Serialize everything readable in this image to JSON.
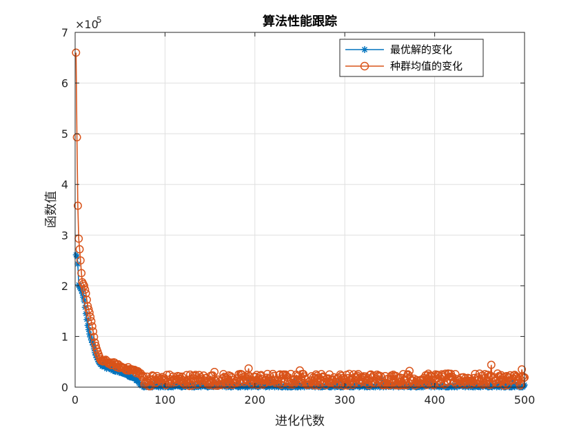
{
  "chart_data": {
    "type": "line",
    "title": "算法性能跟踪",
    "xlabel": "进化代数",
    "ylabel": "函数值",
    "xlim": [
      0,
      500
    ],
    "ylim": [
      0,
      7
    ],
    "x_ticks": [
      0,
      100,
      200,
      300,
      400,
      500
    ],
    "y_ticks": [
      0,
      1,
      2,
      3,
      4,
      5,
      6,
      7
    ],
    "x_tick_labels": [
      "0",
      "100",
      "200",
      "300",
      "400",
      "500"
    ],
    "y_tick_labels": [
      "0",
      "1",
      "2",
      "3",
      "4",
      "5",
      "6",
      "7"
    ],
    "y_exponent_label": "×10",
    "y_exponent_power": "5",
    "grid": true,
    "legend_position": "top-right",
    "legend_entries": [
      "最优解的变化",
      "种群均值的变化"
    ],
    "series": [
      {
        "name": "最优解的变化",
        "color": "#0072BD",
        "marker": "asterisk",
        "key_points": [
          [
            1,
            2.61
          ],
          [
            2,
            2.57
          ],
          [
            3,
            2.43
          ],
          [
            4,
            2.02
          ],
          [
            5,
            1.97
          ],
          [
            6,
            1.95
          ],
          [
            8,
            1.85
          ],
          [
            10,
            1.7
          ],
          [
            12,
            1.45
          ],
          [
            14,
            1.22
          ],
          [
            16,
            1.05
          ],
          [
            18,
            0.93
          ],
          [
            20,
            0.83
          ],
          [
            22,
            0.68
          ],
          [
            24,
            0.58
          ],
          [
            26,
            0.5
          ],
          [
            28,
            0.45
          ],
          [
            30,
            0.42
          ],
          [
            35,
            0.38
          ],
          [
            40,
            0.35
          ],
          [
            45,
            0.32
          ],
          [
            50,
            0.3
          ],
          [
            55,
            0.26
          ],
          [
            60,
            0.22
          ],
          [
            65,
            0.18
          ],
          [
            68,
            0.14
          ],
          [
            70,
            0.12
          ],
          [
            72,
            0.05
          ],
          [
            75,
            0.03
          ],
          [
            80,
            0.02
          ],
          [
            100,
            0.02
          ],
          [
            200,
            0.02
          ],
          [
            300,
            0.02
          ],
          [
            400,
            0.02
          ],
          [
            500,
            0.02
          ]
        ],
        "base_values": [
          0.02,
          0.02,
          0.015,
          0.01
        ],
        "noise": 0.06
      },
      {
        "name": "种群均值的变化",
        "color": "#D95319",
        "marker": "circle",
        "key_points": [
          [
            1,
            6.6
          ],
          [
            2,
            4.93
          ],
          [
            3,
            3.58
          ],
          [
            4,
            2.93
          ],
          [
            5,
            2.72
          ],
          [
            6,
            2.5
          ],
          [
            7,
            2.25
          ],
          [
            8,
            2.07
          ],
          [
            10,
            2.0
          ],
          [
            12,
            1.85
          ],
          [
            14,
            1.6
          ],
          [
            16,
            1.47
          ],
          [
            18,
            1.3
          ],
          [
            20,
            1.1
          ],
          [
            22,
            0.88
          ],
          [
            24,
            0.75
          ],
          [
            26,
            0.65
          ],
          [
            28,
            0.55
          ],
          [
            30,
            0.52
          ],
          [
            35,
            0.5
          ],
          [
            40,
            0.47
          ],
          [
            45,
            0.44
          ],
          [
            50,
            0.4
          ],
          [
            55,
            0.38
          ],
          [
            60,
            0.35
          ],
          [
            65,
            0.33
          ],
          [
            70,
            0.3
          ],
          [
            73,
            0.24
          ],
          [
            76,
            0.18
          ],
          [
            80,
            0.13
          ],
          [
            100,
            0.14
          ],
          [
            200,
            0.15
          ],
          [
            300,
            0.15
          ],
          [
            400,
            0.15
          ],
          [
            500,
            0.15
          ]
        ],
        "noise": 0.12,
        "spikes": [
          [
            193,
            0.37
          ],
          [
            463,
            0.44
          ],
          [
            497,
            0.35
          ],
          [
            155,
            0.3
          ],
          [
            250,
            0.33
          ],
          [
            372,
            0.32
          ]
        ]
      }
    ]
  }
}
